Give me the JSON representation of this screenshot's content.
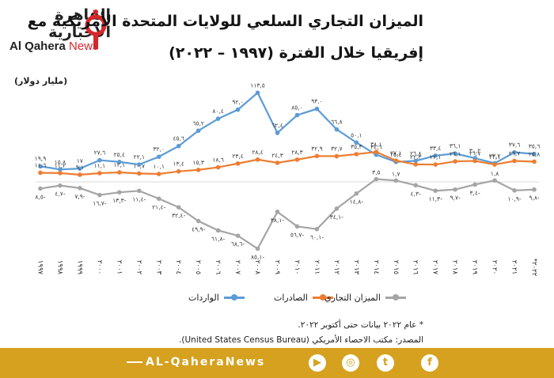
{
  "title": {
    "line1": "الميزان التجاري السلعي للولايات المتحدة الأمريكية مع",
    "line2": "إفريقيا خلال الفترة (١٩٩٧ – ٢٠٢٢)"
  },
  "logo": {
    "arabic": "القاهرة الإخبارية",
    "english_a": "Al Qahera",
    "english_b": "News"
  },
  "unit_label": "(مليار دولار)",
  "notes": {
    "line1": "* عام ٢٠٢٢ بيانات حتى أكتوبر ٢٠٢٢.",
    "line2": "المصدر: مكتب الاحصاء الأمريكي (United States Census Bureau)."
  },
  "footer": {
    "brand": "AL-QaheraNews",
    "icons": [
      "youtube-icon",
      "instagram-icon",
      "twitter-icon",
      "facebook-icon"
    ]
  },
  "colors": {
    "imports": "#5b9bd5",
    "exports": "#ed7d31",
    "balance": "#a5a5a5",
    "footer": "#d5a11e"
  },
  "chart_data": {
    "type": "line",
    "x": [
      "١٩٩٧",
      "١٩٩٨",
      "١٩٩٩",
      "٢٠٠٠",
      "٢٠٠١",
      "٢٠٠٢",
      "٢٠٠٣",
      "٢٠٠٤",
      "٢٠٠٥",
      "٢٠٠٦",
      "٢٠٠٧",
      "٢٠٠٨",
      "٢٠٠٩",
      "٢٠١٠",
      "٢٠١١",
      "٢٠١٢",
      "٢٠١٣",
      "٢٠١٤",
      "٢٠١٥",
      "٢٠١٦",
      "٢٠١٧",
      "٢٠١٨",
      "٢٠١٩",
      "٢٠٢٠",
      "٢٠٢١",
      "*٢٠٢٢"
    ],
    "ylim": [
      -90,
      120
    ],
    "grid": false,
    "legend": "bottom",
    "series": [
      {
        "name": "الواردات",
        "values": [
          19.9,
          15.8,
          17.0,
          27.6,
          25.4,
          22.1,
          32.0,
          45.6,
          65.2,
          80.4,
          92.0,
          113.5,
          62.4,
          85.0,
          93.0,
          66.8,
          50.1,
          34.6,
          25.4,
          26.8,
          33.4,
          36.1,
          30.2,
          23.7,
          37.6,
          35.6
        ],
        "labels": [
          "١٩,٩",
          "١٥,٨",
          "١٧",
          "٢٧,٦",
          "٢٥,٤",
          "٢٢,١",
          "٣٢,٠",
          "٤٥,٦",
          "٦٥,٢",
          "٨٠,٤",
          "٩٢,٠",
          "١١٣,٥",
          "٦٢,٤",
          "٨٥,٠",
          "٩٣,٠",
          "٦٦,٨",
          "٥٠,١",
          "٣٤,٦",
          "٢٥,٤",
          "٢٦,٨",
          "٣٣,٤",
          "٣٦,١",
          "٣٠,٢",
          "٢٣,٧",
          "٣٧,٦",
          "٣٥,٦"
        ]
      },
      {
        "name": "الصادرات",
        "values": [
          11.6,
          11.2,
          9.1,
          11.1,
          12.1,
          10.7,
          10.1,
          13.4,
          15.3,
          18.6,
          23.4,
          28.4,
          24.3,
          28.3,
          32.9,
          32.7,
          35.3,
          38.1,
          27.1,
          22.3,
          22.1,
          26.1,
          26.7,
          22.1,
          26.7,
          25.8
        ],
        "labels": [
          "١١,٦",
          "١١,٢",
          "٩,١",
          "١١,١",
          "١٢,١",
          "١٠,٧",
          "١٠,١",
          "١٣,٤",
          "١٥,٣",
          "١٨,٦",
          "٢٣,٤",
          "٢٨,٤",
          "٢٤,٣",
          "٢٨,٣",
          "٣٢,٩",
          "٣٢,٧",
          "٣٥,٣",
          "٣٨,١",
          "٢٧,١",
          "٢٢,٣",
          "٢٢,١",
          "٢٦,١",
          "٢٦,٧",
          "٢٢,١",
          "٢٦,٧",
          "٢٥,٨"
        ]
      },
      {
        "name": "الميزان التجاري",
        "values": [
          -8.5,
          -4.7,
          -7.9,
          -16.7,
          -13.3,
          -11.4,
          -21.4,
          -32.4,
          -49.9,
          -61.8,
          -68.6,
          -85.1,
          -38.1,
          -56.7,
          -60.1,
          -34.1,
          -14.8,
          3.5,
          1.7,
          -4.3,
          -11.3,
          -9.7,
          -3.4,
          1.8,
          -10.9,
          -9.8
        ],
        "labels": [
          "٨,٥-",
          "٤,٧-",
          "٧,٩-",
          "١٦,٧-",
          "١٣,٣-",
          "١١,٤-",
          "٢١,٤-",
          "٣٢,٤-",
          "٤٩,٩-",
          "٦١,٨-",
          "٦٨,٦-",
          "٨٥,١-",
          "٣٨,١-",
          "٥٦,٧-",
          "٦٠,١-",
          "٣٤,١-",
          "١٤,٨-",
          "٣,٥",
          "١,٧",
          "٤,٣-",
          "١١,٣-",
          "٩,٧-",
          "٣,٤-",
          "١,٨",
          "١٠,٩-",
          "٩,٨-"
        ]
      }
    ]
  }
}
